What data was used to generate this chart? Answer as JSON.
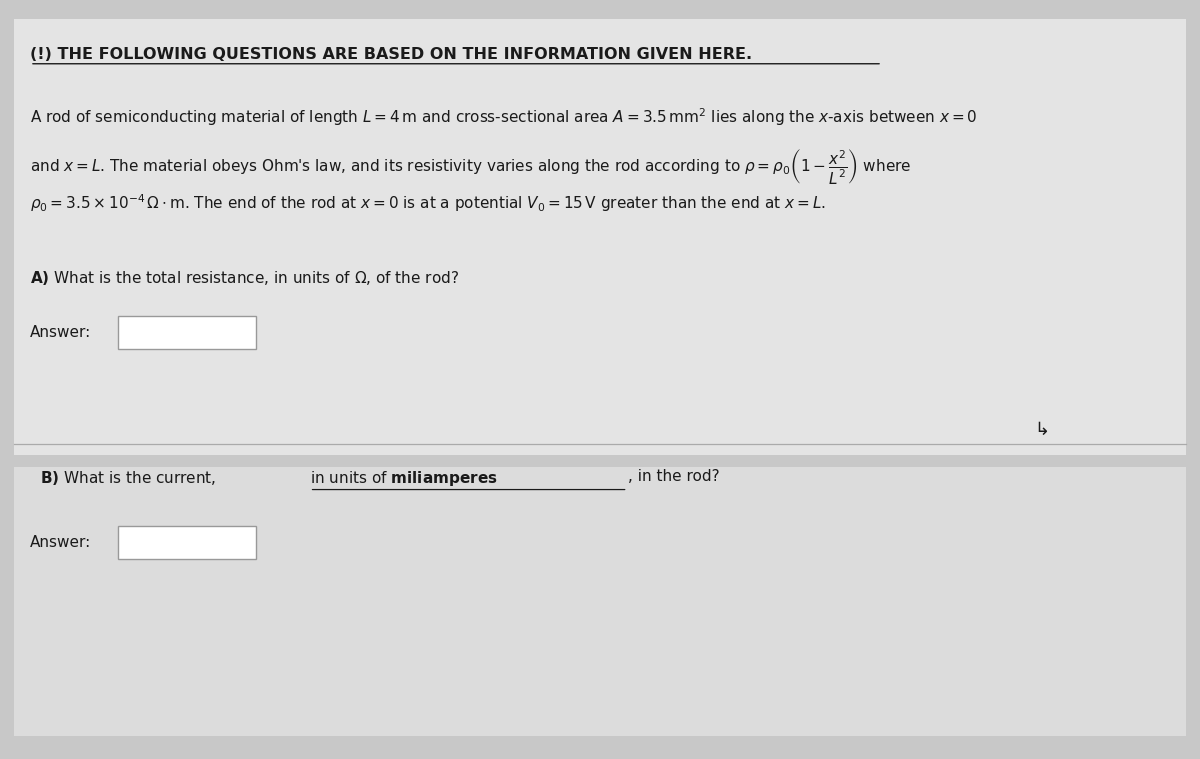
{
  "bg_color": "#c8c8c8",
  "panel_top_color": "#e4e4e4",
  "panel_bot_color": "#dcdcdc",
  "text_color": "#1a1a1a",
  "box_color": "#ffffff",
  "box_edge_color": "#999999",
  "divider_color": "#aaaaaa",
  "title_text": "(!) THE FOLLOWING QUESTIONS ARE BASED ON THE INFORMATION GIVEN HERE.",
  "answer_label": "Answer:",
  "title_fontsize": 11.5,
  "body_fontsize": 11.0
}
